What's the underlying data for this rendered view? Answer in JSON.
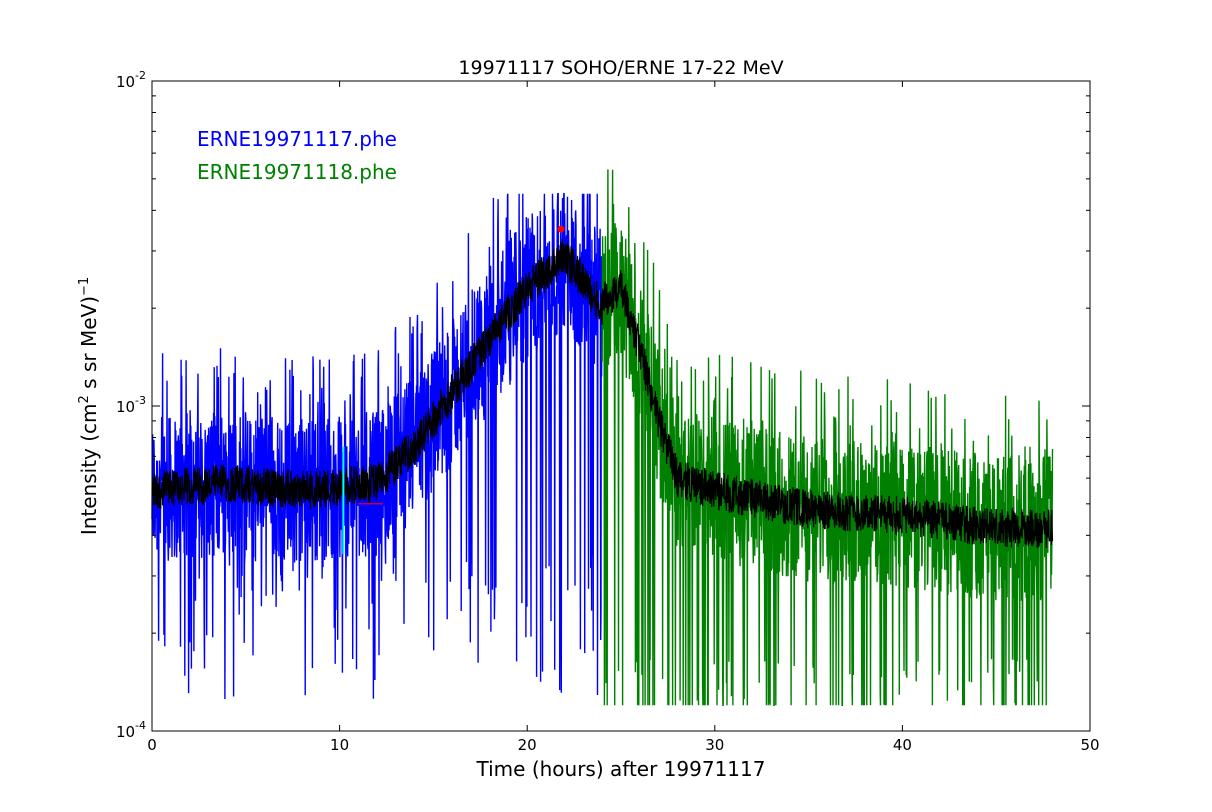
{
  "chart_data": {
    "type": "line",
    "title": "19971117 SOHO/ERNE 17-22 MeV",
    "xlabel": "Time (hours) after 19971117",
    "ylabel_parts": {
      "main": "Intensity (cm",
      "exp1": "2",
      "mid": "  s sr MeV)",
      "exp2": "−1"
    },
    "xlim": [
      0,
      50
    ],
    "ylim": [
      0.0001,
      0.01
    ],
    "yscale": "log",
    "grid": false,
    "x_ticks": [
      0,
      10,
      20,
      30,
      40,
      50
    ],
    "x_tick_labels": [
      "0",
      "10",
      "20",
      "30",
      "40",
      "50"
    ],
    "y_ticks": [
      0.0001,
      0.001,
      0.01
    ],
    "y_tick_labels": [
      {
        "base": "10",
        "exp": "-4"
      },
      {
        "base": "10",
        "exp": "-3"
      },
      {
        "base": "10",
        "exp": "-2"
      }
    ],
    "legend_placement": "top-left",
    "series": [
      {
        "name": "ERNE19971117.phe",
        "color": "#0000ff",
        "x_range": [
          0,
          24
        ],
        "trend": [
          [
            0,
            0.00055
          ],
          [
            4,
            0.00058
          ],
          [
            8,
            0.00055
          ],
          [
            12,
            0.00058
          ],
          [
            14,
            0.00075
          ],
          [
            16,
            0.0011
          ],
          [
            18,
            0.0016
          ],
          [
            20,
            0.0023
          ],
          [
            22,
            0.0029
          ],
          [
            23,
            0.0024
          ],
          [
            24,
            0.002
          ]
        ],
        "spread": {
          "low": 0.00025,
          "high": 0.0015
        }
      },
      {
        "name": "ERNE19971118.phe",
        "color": "#008000",
        "x_range": [
          24,
          48
        ],
        "trend": [
          [
            24,
            0.0021
          ],
          [
            25,
            0.0023
          ],
          [
            26,
            0.0015
          ],
          [
            27,
            0.0009
          ],
          [
            28,
            0.0006
          ],
          [
            30,
            0.00055
          ],
          [
            35,
            0.00048
          ],
          [
            40,
            0.00046
          ],
          [
            45,
            0.00042
          ],
          [
            48,
            0.00042
          ]
        ],
        "spread": {
          "low": 0.00012,
          "high": 0.002
        }
      }
    ],
    "smoothed": {
      "color": "#000000"
    },
    "markers": [
      {
        "type": "point",
        "x": 21.8,
        "y": 0.0035,
        "color": "#ff0000"
      },
      {
        "type": "vline",
        "x": 10.2,
        "y_range": [
          0.00035,
          0.00075
        ],
        "color": "#00ffff"
      },
      {
        "type": "hline",
        "x_range": [
          11,
          12.3
        ],
        "y": 0.0005,
        "color": "#ff0000"
      }
    ]
  }
}
